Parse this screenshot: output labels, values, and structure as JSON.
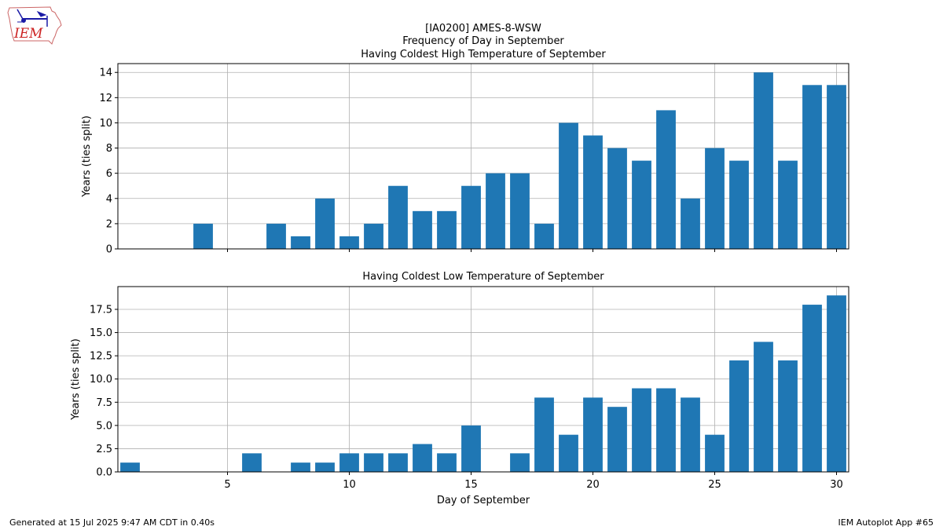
{
  "logo": {
    "text": "IEM"
  },
  "title": {
    "line1": "[IA0200] AMES-8-WSW",
    "line2": "Frequency of Day in September",
    "line3": "Having Coldest High Temperature of September"
  },
  "footer": {
    "left": "Generated at 15 Jul 2025 9:47 AM CDT in 0.40s",
    "right": "IEM Autoplot App #65"
  },
  "colors": {
    "bar": "#1f77b4",
    "grid": "#b0b0b0"
  },
  "chart_data": [
    {
      "type": "bar",
      "title": "Having Coldest High Temperature of September",
      "xlabel": "",
      "ylabel": "Years (ties split)",
      "categories": [
        1,
        2,
        3,
        4,
        5,
        6,
        7,
        8,
        9,
        10,
        11,
        12,
        13,
        14,
        15,
        16,
        17,
        18,
        19,
        20,
        21,
        22,
        23,
        24,
        25,
        26,
        27,
        28,
        29,
        30
      ],
      "values": [
        0,
        0,
        0,
        2,
        0,
        0,
        2,
        1,
        4,
        1,
        2,
        5,
        3,
        3,
        5,
        6,
        6,
        2,
        10,
        9,
        8,
        7,
        11,
        4,
        8,
        7,
        14,
        7,
        13,
        13
      ],
      "xlim": [
        0.5,
        30.5
      ],
      "ylim": [
        0,
        14.7
      ],
      "xticks": [
        5,
        10,
        15,
        20,
        25,
        30
      ],
      "xticklabels": [],
      "yticks": [
        0,
        2,
        4,
        6,
        8,
        10,
        12,
        14
      ],
      "yticklabels": [
        "0",
        "2",
        "4",
        "6",
        "8",
        "10",
        "12",
        "14"
      ],
      "grid": true
    },
    {
      "type": "bar",
      "title": "Having Coldest Low Temperature of September",
      "xlabel": "Day of September",
      "ylabel": "Years (ties split)",
      "categories": [
        1,
        2,
        3,
        4,
        5,
        6,
        7,
        8,
        9,
        10,
        11,
        12,
        13,
        14,
        15,
        16,
        17,
        18,
        19,
        20,
        21,
        22,
        23,
        24,
        25,
        26,
        27,
        28,
        29,
        30
      ],
      "values": [
        1,
        0,
        0,
        0,
        0,
        2,
        0,
        1,
        1,
        2,
        2,
        2,
        3,
        2,
        5,
        0,
        2,
        8,
        4,
        8,
        7,
        9,
        9,
        8,
        4,
        12,
        14,
        12,
        18,
        19
      ],
      "xlim": [
        0.5,
        30.5
      ],
      "ylim": [
        0,
        19.95
      ],
      "xticks": [
        5,
        10,
        15,
        20,
        25,
        30
      ],
      "xticklabels": [
        "5",
        "10",
        "15",
        "20",
        "25",
        "30"
      ],
      "yticks": [
        0,
        2.5,
        5,
        7.5,
        10,
        12.5,
        15,
        17.5
      ],
      "yticklabels": [
        "0.0",
        "2.5",
        "5.0",
        "7.5",
        "10.0",
        "12.5",
        "15.0",
        "17.5"
      ],
      "grid": true
    }
  ]
}
